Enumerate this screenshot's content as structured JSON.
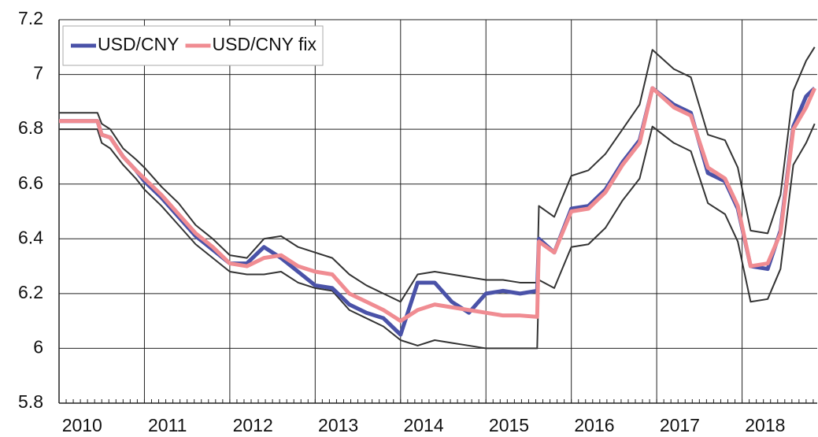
{
  "chart_data": {
    "type": "line",
    "x": [
      2010.0,
      2010.45,
      2010.5,
      2010.6,
      2010.75,
      2010.9,
      2011.0,
      2011.2,
      2011.4,
      2011.6,
      2011.8,
      2012.0,
      2012.2,
      2012.4,
      2012.6,
      2012.8,
      2013.0,
      2013.2,
      2013.4,
      2013.6,
      2013.8,
      2014.0,
      2014.2,
      2014.4,
      2014.6,
      2014.8,
      2015.0,
      2015.2,
      2015.4,
      2015.6,
      2015.62,
      2015.8,
      2016.0,
      2016.2,
      2016.4,
      2016.6,
      2016.8,
      2016.95,
      2017.2,
      2017.4,
      2017.6,
      2017.8,
      2017.95,
      2018.1,
      2018.3,
      2018.45,
      2018.6,
      2018.75,
      2018.85
    ],
    "series": [
      {
        "color": "#333333",
        "values": [
          6.86,
          6.86,
          6.82,
          6.8,
          6.73,
          6.69,
          6.66,
          6.59,
          6.53,
          6.45,
          6.4,
          6.34,
          6.33,
          6.4,
          6.41,
          6.37,
          6.35,
          6.33,
          6.27,
          6.23,
          6.2,
          6.17,
          6.27,
          6.28,
          6.27,
          6.26,
          6.25,
          6.25,
          6.24,
          6.24,
          6.52,
          6.48,
          6.63,
          6.65,
          6.71,
          6.8,
          6.89,
          7.09,
          7.02,
          6.99,
          6.78,
          6.76,
          6.66,
          6.43,
          6.42,
          6.56,
          6.94,
          7.05,
          7.1
        ]
      },
      {
        "color": "#333333",
        "values": [
          6.8,
          6.8,
          6.75,
          6.73,
          6.67,
          6.62,
          6.58,
          6.52,
          6.45,
          6.38,
          6.33,
          6.28,
          6.27,
          6.27,
          6.28,
          6.24,
          6.22,
          6.21,
          6.14,
          6.11,
          6.08,
          6.03,
          6.01,
          6.03,
          6.02,
          6.01,
          6.0,
          6.0,
          6.0,
          6.0,
          6.25,
          6.22,
          6.37,
          6.38,
          6.44,
          6.54,
          6.62,
          6.81,
          6.75,
          6.72,
          6.53,
          6.49,
          6.39,
          6.17,
          6.18,
          6.29,
          6.67,
          6.75,
          6.82
        ]
      },
      {
        "name": "USD/CNY",
        "color": "#4a52a8",
        "values": [
          6.83,
          6.83,
          6.78,
          6.77,
          6.7,
          6.65,
          6.61,
          6.55,
          6.48,
          6.41,
          6.36,
          6.31,
          6.31,
          6.37,
          6.33,
          6.28,
          6.23,
          6.22,
          6.16,
          6.13,
          6.11,
          6.05,
          6.24,
          6.24,
          6.17,
          6.13,
          6.2,
          6.21,
          6.2,
          6.21,
          6.4,
          6.35,
          6.51,
          6.52,
          6.58,
          6.68,
          6.76,
          6.95,
          6.89,
          6.86,
          6.64,
          6.61,
          6.51,
          6.3,
          6.29,
          6.43,
          6.81,
          6.92,
          6.95
        ]
      },
      {
        "name": "USD/CNY fix",
        "color": "#f08c92",
        "values": [
          6.83,
          6.83,
          6.78,
          6.77,
          6.7,
          6.65,
          6.62,
          6.56,
          6.49,
          6.42,
          6.37,
          6.31,
          6.3,
          6.33,
          6.34,
          6.3,
          6.28,
          6.27,
          6.2,
          6.17,
          6.14,
          6.1,
          6.14,
          6.16,
          6.15,
          6.14,
          6.13,
          6.12,
          6.12,
          6.115,
          6.39,
          6.35,
          6.5,
          6.51,
          6.57,
          6.67,
          6.75,
          6.95,
          6.88,
          6.85,
          6.66,
          6.62,
          6.52,
          6.3,
          6.31,
          6.42,
          6.8,
          6.88,
          6.95
        ]
      }
    ],
    "xlim": [
      2010,
      2018.88
    ],
    "xticks": [
      {
        "value": 2010,
        "label": "2010"
      },
      {
        "value": 2011,
        "label": "2011"
      },
      {
        "value": 2012,
        "label": "2012"
      },
      {
        "value": 2013,
        "label": "2013"
      },
      {
        "value": 2014,
        "label": "2014"
      },
      {
        "value": 2015,
        "label": "2015"
      },
      {
        "value": 2016,
        "label": "2016"
      },
      {
        "value": 2017,
        "label": "2017"
      },
      {
        "value": 2018,
        "label": "2018"
      }
    ],
    "ylim": [
      5.8,
      7.2
    ],
    "yticks": [
      5.8,
      6,
      6.2,
      6.4,
      6.6,
      6.8,
      7,
      7.2
    ],
    "grid": true,
    "legend": "upper-left"
  }
}
